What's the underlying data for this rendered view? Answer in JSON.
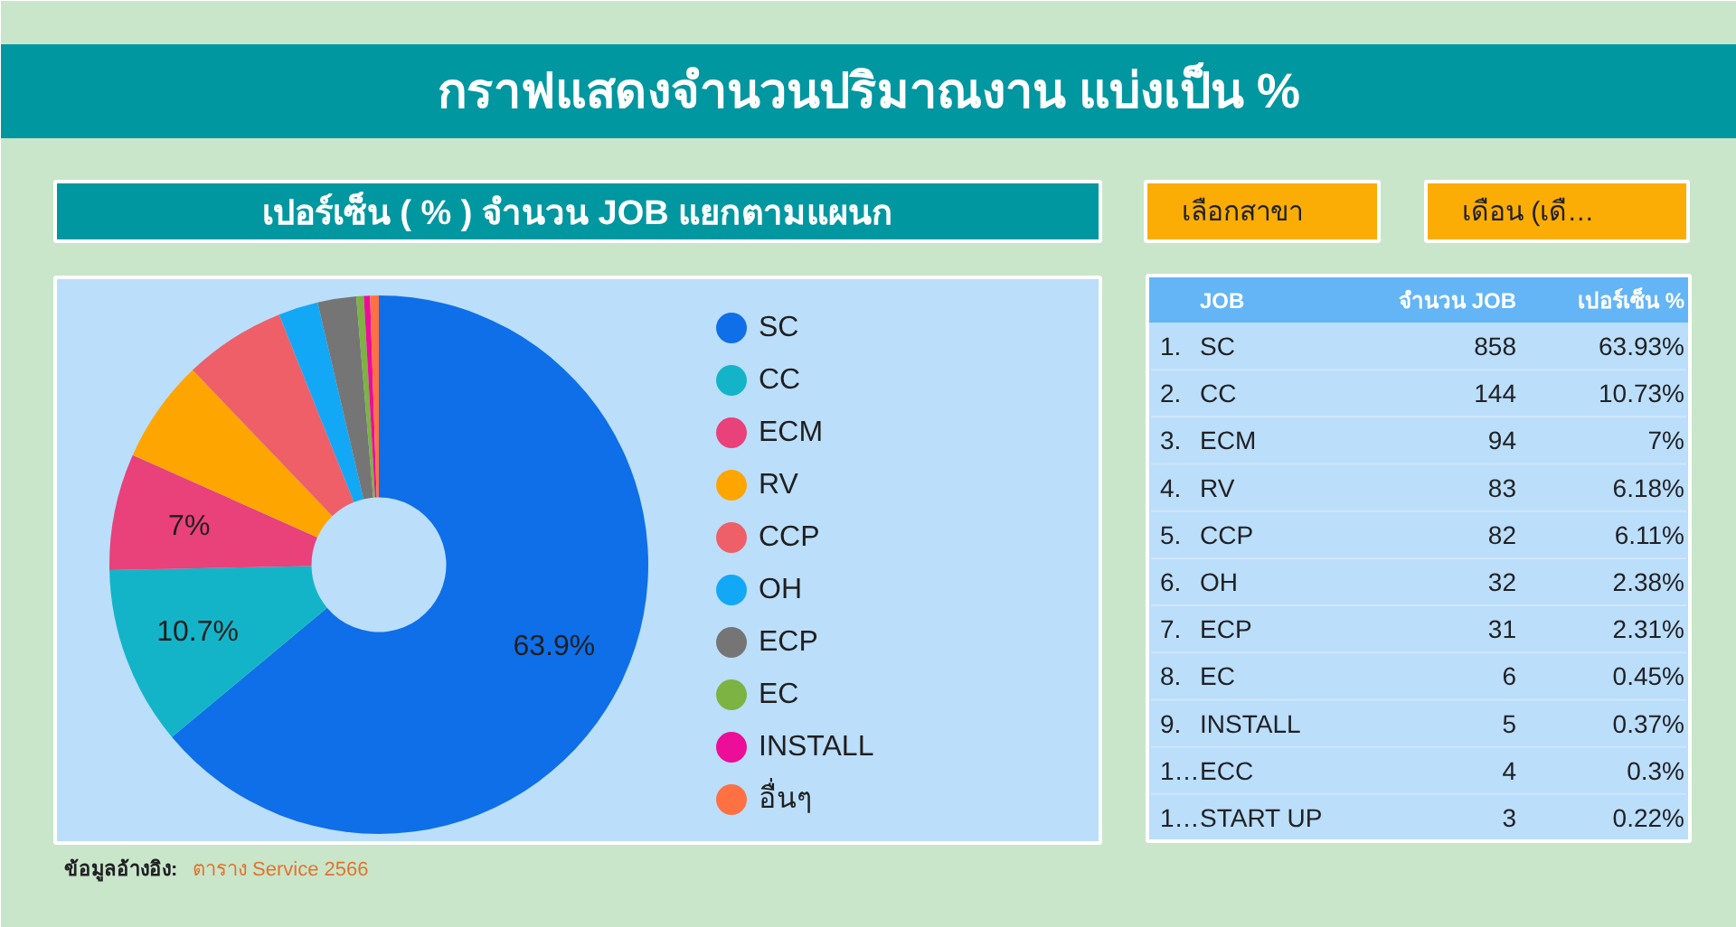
{
  "chart_data": [
    {
      "type": "donut",
      "title": "กราฟแสดงจำนวนปริมาณงาน แบ่งเป็น %",
      "subtitle": "เปอร์เซ็น ( % ) จำนวน JOB แยกตามแผนก",
      "categories": [
        "SC",
        "CC",
        "ECM",
        "RV",
        "CCP",
        "OH",
        "ECP",
        "EC",
        "INSTALL",
        "อื่นๆ"
      ],
      "values": [
        63.93,
        10.73,
        7,
        6.18,
        6.11,
        2.38,
        2.31,
        0.45,
        0.37,
        0.52
      ],
      "colors": [
        "#0e6fe8",
        "#14b4c8",
        "#e9417a",
        "#ffa500",
        "#ef5f67",
        "#13a8f5",
        "#757575",
        "#7cb342",
        "#ec0e98",
        "#ff7043"
      ],
      "value_labels": [
        "63.9%",
        "10.7%",
        "7%",
        null,
        null,
        null,
        null,
        null,
        null,
        null
      ],
      "legend": "right",
      "annotations": [
        "ข้อมูลอ้างอิง:",
        "ตาราง Service 2566"
      ]
    },
    {
      "type": "other",
      "ylabel": "JOB",
      "categories": [
        "SC",
        "CC",
        "ECM",
        "RV",
        "CCP",
        "OH",
        "ECP",
        "EC",
        "INSTALL",
        "ECC",
        "START UP"
      ],
      "series": [
        {
          "values": [
            1,
            2,
            3,
            4,
            5,
            6,
            7,
            8,
            9,
            null,
            null
          ],
          "value_labels": [
            "1.",
            "2.",
            "3.",
            "4.",
            "5.",
            "6.",
            "7.",
            "8.",
            "9.",
            "1…",
            "1…"
          ]
        },
        {
          "name": "จำนวน JOB",
          "values": [
            858,
            144,
            94,
            83,
            82,
            32,
            31,
            6,
            5,
            4,
            3
          ]
        },
        {
          "name": "เปอร์เซ็น %",
          "values": [
            63.93,
            10.73,
            7,
            6.18,
            6.11,
            2.38,
            2.31,
            0.45,
            0.37,
            0.3,
            0.22
          ],
          "value_labels": [
            "63.93%",
            "10.73%",
            "7%",
            "6.18%",
            "6.11%",
            "2.38%",
            "2.31%",
            "0.45%",
            "0.37%",
            "0.3%",
            "0.22%"
          ]
        }
      ],
      "data_labels": true,
      "annotations": [
        "เลือกสาขา",
        "เดือน (เดื…"
      ]
    }
  ]
}
